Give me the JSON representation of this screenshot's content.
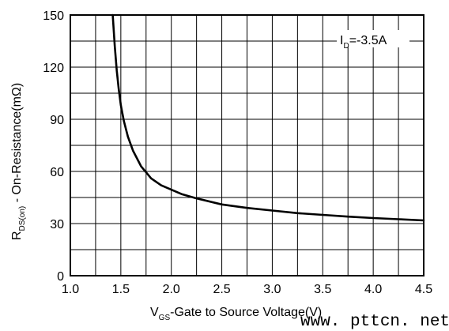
{
  "chart_data": {
    "type": "line",
    "xlabel": {
      "prefix": "V",
      "sub": "GS",
      "suffix": "-Gate to Source Voltage(V)"
    },
    "ylabel": {
      "prefix": "R",
      "sub": "DS(on)",
      "suffix": " - On-Resistance(mΩ)"
    },
    "xlim": [
      1.0,
      4.5
    ],
    "ylim": [
      0,
      150
    ],
    "xticks": [
      "1.0",
      "1.5",
      "2.0",
      "2.5",
      "3.0",
      "3.5",
      "4.0",
      "4.5"
    ],
    "yticks": [
      "0",
      "30",
      "60",
      "90",
      "120",
      "150"
    ],
    "grid": true,
    "annotation": {
      "prefix": "I",
      "sub": "D",
      "suffix": "=-3.5A"
    },
    "series": [
      {
        "x": [
          1.42,
          1.44,
          1.46,
          1.48,
          1.5,
          1.53,
          1.57,
          1.62,
          1.7,
          1.8,
          1.9,
          2.0,
          2.1,
          2.25,
          2.5,
          2.75,
          3.0,
          3.25,
          3.5,
          3.75,
          4.0,
          4.25,
          4.5
        ],
        "y": [
          150,
          132,
          118,
          107,
          98,
          89,
          80,
          72,
          63,
          56,
          52,
          49.5,
          47,
          44.5,
          41,
          39,
          37.5,
          36,
          35,
          34,
          33.2,
          32.5,
          31.8
        ]
      }
    ]
  },
  "watermark": "www. pttcn. net"
}
